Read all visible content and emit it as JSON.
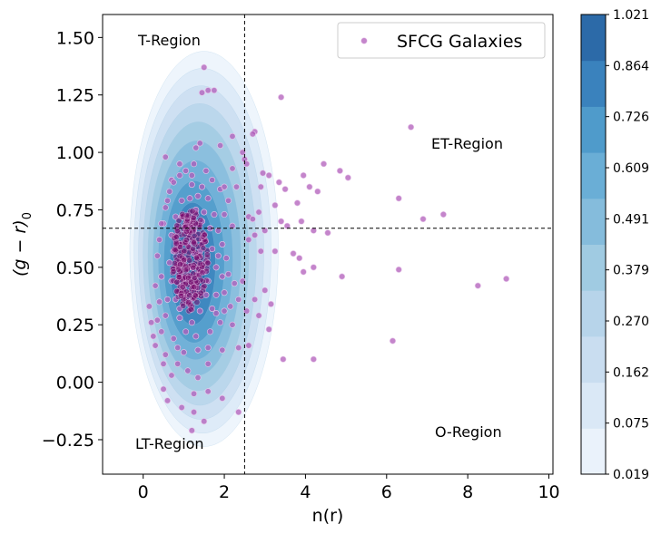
{
  "chart_data": {
    "type": "scatter",
    "xlabel": "n(r)",
    "ylabel": "(g − r)",
    "ylabel_subscript": "0",
    "xlim": [
      -1.0,
      10.1
    ],
    "ylim": [
      -0.4,
      1.6
    ],
    "xticks": [
      0,
      2,
      4,
      6,
      8,
      10
    ],
    "xtick_labels": [
      "0",
      "2",
      "4",
      "6",
      "8",
      "10"
    ],
    "yticks": [
      -0.25,
      0.0,
      0.25,
      0.5,
      0.75,
      1.0,
      1.25,
      1.5
    ],
    "ytick_labels": [
      "−0.25",
      "0.00",
      "0.25",
      "0.50",
      "0.75",
      "1.00",
      "1.25",
      "1.50"
    ],
    "grid": false,
    "legend": {
      "position": "top-right",
      "entries": [
        "SFCG Galaxies"
      ]
    },
    "dividers": {
      "x": 2.5,
      "y": 0.67
    },
    "region_labels": [
      "T-Region",
      "ET-Region",
      "LT-Region",
      "O-Region"
    ],
    "colors": {
      "points": "#b05cba",
      "point_edge": "#e9c9ec",
      "dense_core": "#7a0f6f"
    },
    "colorbar": {
      "ticks": [
        "1.021",
        "0.864",
        "0.726",
        "0.609",
        "0.491",
        "0.379",
        "0.270",
        "0.162",
        "0.075",
        "0.019"
      ],
      "levels": [
        0.019,
        0.075,
        0.162,
        0.27,
        0.379,
        0.491,
        0.609,
        0.726,
        0.864,
        1.021
      ],
      "colors": [
        "#f7fbff",
        "#eaf2fb",
        "#dae8f6",
        "#c9ddf0",
        "#b7d4ea",
        "#a0cbe2",
        "#85bcdc",
        "#6aaed6",
        "#4f9bcb",
        "#3a82bd",
        "#2c6aa8"
      ]
    },
    "series": [
      {
        "name": "SFCG Galaxies",
        "points": [
          [
            1.5,
            1.37
          ],
          [
            1.6,
            1.27
          ],
          [
            1.75,
            1.27
          ],
          [
            1.45,
            1.26
          ],
          [
            3.4,
            1.24
          ],
          [
            6.6,
            1.11
          ],
          [
            2.75,
            1.09
          ],
          [
            2.7,
            1.08
          ],
          [
            2.2,
            1.07
          ],
          [
            1.4,
            1.04
          ],
          [
            1.3,
            1.02
          ],
          [
            1.9,
            1.03
          ],
          [
            2.45,
            1.0
          ],
          [
            2.5,
            0.97
          ],
          [
            2.55,
            0.95
          ],
          [
            2.2,
            0.93
          ],
          [
            0.55,
            0.98
          ],
          [
            2.95,
            0.91
          ],
          [
            3.1,
            0.9
          ],
          [
            4.45,
            0.95
          ],
          [
            3.95,
            0.9
          ],
          [
            4.85,
            0.92
          ],
          [
            5.05,
            0.89
          ],
          [
            3.35,
            0.87
          ],
          [
            3.5,
            0.84
          ],
          [
            2.3,
            0.85
          ],
          [
            2.9,
            0.85
          ],
          [
            4.1,
            0.85
          ],
          [
            4.3,
            0.83
          ],
          [
            3.8,
            0.78
          ],
          [
            3.25,
            0.77
          ],
          [
            2.6,
            0.72
          ],
          [
            2.7,
            0.71
          ],
          [
            3.4,
            0.7
          ],
          [
            3.9,
            0.7
          ],
          [
            2.85,
            0.74
          ],
          [
            6.3,
            0.8
          ],
          [
            6.9,
            0.71
          ],
          [
            7.4,
            0.73
          ],
          [
            4.2,
            0.66
          ],
          [
            4.55,
            0.65
          ],
          [
            3.55,
            0.68
          ],
          [
            3.0,
            0.66
          ],
          [
            2.75,
            0.64
          ],
          [
            2.6,
            0.62
          ],
          [
            2.9,
            0.57
          ],
          [
            3.25,
            0.57
          ],
          [
            3.7,
            0.56
          ],
          [
            3.85,
            0.54
          ],
          [
            4.2,
            0.5
          ],
          [
            3.95,
            0.48
          ],
          [
            4.9,
            0.46
          ],
          [
            6.3,
            0.49
          ],
          [
            8.95,
            0.45
          ],
          [
            8.25,
            0.42
          ],
          [
            3.0,
            0.4
          ],
          [
            2.75,
            0.36
          ],
          [
            3.15,
            0.34
          ],
          [
            2.85,
            0.29
          ],
          [
            3.1,
            0.23
          ],
          [
            2.55,
            0.31
          ],
          [
            2.25,
            0.43
          ],
          [
            2.45,
            0.44
          ],
          [
            2.35,
            0.36
          ],
          [
            2.2,
            0.25
          ],
          [
            2.6,
            0.16
          ],
          [
            2.35,
            0.15
          ],
          [
            3.45,
            0.1
          ],
          [
            4.2,
            0.1
          ],
          [
            6.15,
            0.18
          ],
          [
            2.0,
            0.39
          ],
          [
            1.8,
            0.3
          ],
          [
            1.65,
            0.22
          ],
          [
            1.95,
            0.14
          ],
          [
            1.6,
            0.08
          ],
          [
            1.35,
            0.02
          ],
          [
            1.25,
            -0.05
          ],
          [
            1.6,
            -0.04
          ],
          [
            1.95,
            -0.07
          ],
          [
            1.25,
            -0.13
          ],
          [
            1.2,
            -0.21
          ],
          [
            1.5,
            -0.17
          ],
          [
            2.35,
            -0.13
          ],
          [
            0.95,
            -0.11
          ],
          [
            0.6,
            -0.08
          ],
          [
            0.5,
            -0.03
          ],
          [
            0.7,
            0.03
          ],
          [
            0.5,
            0.08
          ],
          [
            0.55,
            0.12
          ],
          [
            0.3,
            0.16
          ],
          [
            0.45,
            0.22
          ],
          [
            0.2,
            0.26
          ],
          [
            0.35,
            0.27
          ],
          [
            0.25,
            0.2
          ],
          [
            0.15,
            0.33
          ],
          [
            0.4,
            0.35
          ],
          [
            0.3,
            0.42
          ],
          [
            0.45,
            0.46
          ],
          [
            0.35,
            0.55
          ],
          [
            0.4,
            0.62
          ],
          [
            0.5,
            0.69
          ],
          [
            0.55,
            0.76
          ],
          [
            0.65,
            0.83
          ],
          [
            0.7,
            0.88
          ],
          [
            0.9,
            0.95
          ],
          [
            1.05,
            0.92
          ],
          [
            1.2,
            0.9
          ],
          [
            1.45,
            0.85
          ],
          [
            1.6,
            0.8
          ],
          [
            1.75,
            0.73
          ],
          [
            1.85,
            0.66
          ],
          [
            1.95,
            0.6
          ],
          [
            2.05,
            0.54
          ],
          [
            2.1,
            0.47
          ],
          [
            1.95,
            0.46
          ],
          [
            1.8,
            0.5
          ],
          [
            1.7,
            0.58
          ],
          [
            1.65,
            0.67
          ],
          [
            1.5,
            0.74
          ],
          [
            1.35,
            0.81
          ],
          [
            1.15,
            0.8
          ],
          [
            0.95,
            0.79
          ],
          [
            0.8,
            0.72
          ],
          [
            0.7,
            0.64
          ],
          [
            0.65,
            0.52
          ],
          [
            0.7,
            0.44
          ],
          [
            0.8,
            0.36
          ],
          [
            0.9,
            0.28
          ],
          [
            1.05,
            0.22
          ],
          [
            1.2,
            0.26
          ],
          [
            1.4,
            0.31
          ],
          [
            1.55,
            0.38
          ],
          [
            1.3,
            0.41
          ],
          [
            1.15,
            0.35
          ],
          [
            0.95,
            0.42
          ],
          [
            1.0,
            0.53
          ],
          [
            1.1,
            0.6
          ],
          [
            1.25,
            0.66
          ],
          [
            1.4,
            0.57
          ],
          [
            1.5,
            0.48
          ],
          [
            1.35,
            0.47
          ],
          [
            1.2,
            0.5
          ],
          [
            1.05,
            0.66
          ],
          [
            0.9,
            0.6
          ],
          [
            0.85,
            0.5
          ],
          [
            1.1,
            0.45
          ],
          [
            1.25,
            0.56
          ],
          [
            1.15,
            0.71
          ],
          [
            1.3,
            0.75
          ],
          [
            0.75,
            0.57
          ],
          [
            1.0,
            0.38
          ],
          [
            1.6,
            0.44
          ],
          [
            1.45,
            0.62
          ],
          [
            0.6,
            0.36
          ],
          [
            1.8,
            0.38
          ],
          [
            1.7,
            0.32
          ],
          [
            2.0,
            0.31
          ],
          [
            1.9,
            0.26
          ],
          [
            2.15,
            0.33
          ],
          [
            1.85,
            0.55
          ],
          [
            2.0,
            0.73
          ],
          [
            2.1,
            0.79
          ],
          [
            1.9,
            0.84
          ],
          [
            2.2,
            0.68
          ],
          [
            2.0,
            0.85
          ],
          [
            0.85,
            0.15
          ],
          [
            1.0,
            0.13
          ],
          [
            0.75,
            0.19
          ],
          [
            1.35,
            0.14
          ],
          [
            1.1,
            0.05
          ],
          [
            0.85,
            0.08
          ],
          [
            0.55,
            0.29
          ],
          [
            0.9,
            0.32
          ],
          [
            1.3,
            0.2
          ],
          [
            1.6,
            0.15
          ],
          [
            0.45,
            0.69
          ],
          [
            0.6,
            0.79
          ],
          [
            0.75,
            0.87
          ],
          [
            0.9,
            0.9
          ],
          [
            1.25,
            0.95
          ],
          [
            1.55,
            0.92
          ],
          [
            1.7,
            0.88
          ],
          [
            0.95,
            0.72
          ],
          [
            1.2,
            0.86
          ],
          [
            1.45,
            0.7
          ]
        ]
      }
    ]
  }
}
